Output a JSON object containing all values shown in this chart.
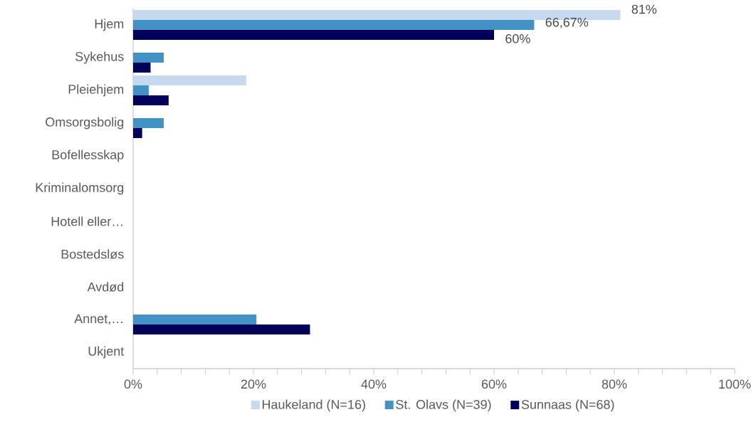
{
  "chart_data": {
    "type": "bar",
    "orientation": "horizontal",
    "categories": [
      "Hjem",
      "Sykehus",
      "Pleiehjem",
      "Omsorgsbolig",
      "Bofellesskap",
      "Kriminalomsorg",
      "Hotell eller…",
      "Bostedsløs",
      "Avdød",
      "Annet,…",
      "Ukjent"
    ],
    "series": [
      {
        "name": "Haukeland (N=16)",
        "color": "#c5daf0",
        "values": [
          81,
          0,
          18.8,
          0,
          0,
          0,
          0,
          0,
          0,
          0,
          0
        ],
        "value_labels": [
          "81%",
          null,
          null,
          null,
          null,
          null,
          null,
          null,
          null,
          null,
          null
        ]
      },
      {
        "name": "St. Olavs (N=39)",
        "color": "#4292c6",
        "values": [
          66.67,
          5.1,
          2.6,
          5.1,
          0,
          0,
          0,
          0,
          0,
          20.5,
          0
        ],
        "value_labels": [
          "66,67%",
          null,
          null,
          null,
          null,
          null,
          null,
          null,
          null,
          null,
          null
        ]
      },
      {
        "name": "Sunnaas (N=68)",
        "color": "#00005a",
        "values": [
          60,
          2.9,
          5.9,
          1.5,
          0,
          0,
          0,
          0,
          0,
          29.4,
          0
        ],
        "value_labels": [
          "60%",
          null,
          null,
          null,
          null,
          null,
          null,
          null,
          null,
          null,
          null
        ]
      }
    ],
    "xlim": [
      0,
      100
    ],
    "xticks": [
      {
        "value": 0,
        "label": "0%"
      },
      {
        "value": 20,
        "label": "20%"
      },
      {
        "value": 40,
        "label": "40%"
      },
      {
        "value": 60,
        "label": "60%"
      },
      {
        "value": 80,
        "label": "80%"
      },
      {
        "value": 100,
        "label": "100%"
      }
    ],
    "grid": false,
    "legend": "bottom"
  }
}
